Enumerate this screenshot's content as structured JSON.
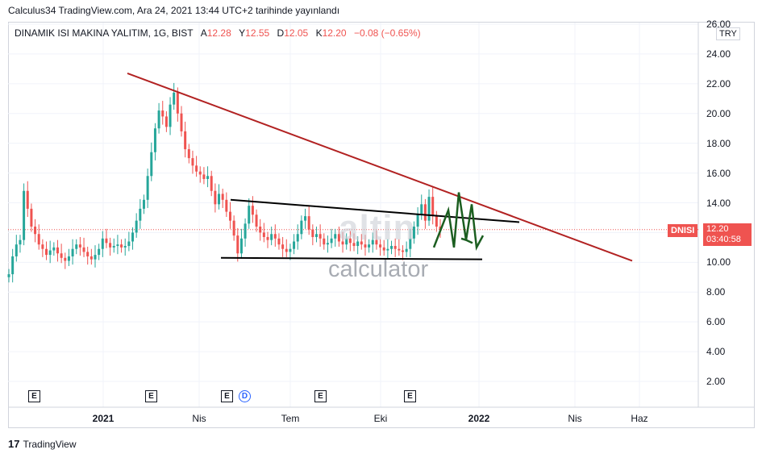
{
  "header": {
    "published": "Calculus34 TradingView.com, Ara 24, 2021 13:44 UTC+2 tarihinde yayınlandı"
  },
  "legend": {
    "symbol": "DINAMIK ISI MAKINA YALITIM, 1G, BIST",
    "open_label": "A",
    "open": "12.28",
    "high_label": "Y",
    "high": "12.55",
    "low_label": "D",
    "low": "12.05",
    "close_label": "K",
    "close": "12.20",
    "change": "−0.08 (−0.65%)"
  },
  "currency": "TRY",
  "price_tag": {
    "ticker": "DNISI",
    "price": "12.20",
    "countdown": "03:40:58"
  },
  "watermark": {
    "brand": "altin",
    "sub": "calculator"
  },
  "footer": {
    "brand": "TradingView"
  },
  "events": [
    "E",
    "E",
    "E",
    "D",
    "E",
    "E"
  ],
  "colors": {
    "up": "#26a69a",
    "down": "#ef5350",
    "trend": "#b22222",
    "triangle": "#000000",
    "pattern": "#1b5e20"
  },
  "chart_data": {
    "type": "candlestick",
    "y_ticks": [
      "26.00",
      "24.00",
      "22.00",
      "20.00",
      "18.00",
      "16.00",
      "14.00",
      "12.00",
      "10.00",
      "8.00",
      "6.00",
      "4.00",
      "2.00"
    ],
    "x_ticks": [
      "2021",
      "Nis",
      "Tem",
      "Eki",
      "2022",
      "Nis",
      "Haz"
    ],
    "ylim": [
      0.9,
      26.5
    ],
    "last_price": 12.2,
    "series": [
      {
        "values": [
          9.2,
          10.4,
          11.2,
          11.5,
          14.8,
          13.6,
          12.4,
          11.9,
          11.2,
          10.9,
          10.5,
          10.8,
          11.0,
          10.6,
          10.3,
          10.1,
          10.4,
          10.9,
          11.2,
          11.0,
          10.7,
          10.4,
          10.2,
          10.5,
          10.9,
          11.6,
          11.3,
          11.0,
          11.1,
          11.2,
          11.0,
          11.1,
          11.4,
          12.0,
          12.8,
          13.6,
          14.2,
          15.8,
          17.4,
          19.0,
          20.2,
          19.8,
          19.1,
          20.6,
          21.4,
          20.0,
          18.8,
          17.6,
          17.0,
          16.5,
          16.1,
          15.9,
          15.6,
          15.8,
          14.8,
          13.9,
          14.6,
          14.2,
          13.4,
          12.8,
          11.8,
          10.6,
          11.6,
          12.6,
          13.8,
          13.2,
          12.4,
          12.0,
          11.7,
          11.5,
          11.9,
          11.6,
          11.2,
          10.9,
          10.7,
          10.9,
          11.4,
          11.9,
          12.8,
          13.1,
          12.2,
          11.7,
          11.9,
          11.6,
          11.2,
          11.3,
          11.6,
          11.9,
          11.4,
          11.2,
          11.6,
          11.3,
          11.1,
          11.4,
          11.2,
          11.0,
          11.2,
          11.5,
          11.2,
          11.0,
          10.8,
          10.9,
          11.1,
          10.9,
          10.8,
          10.7,
          10.9,
          11.6,
          12.4,
          13.2,
          13.9,
          12.8,
          14.4,
          13.1,
          12.4,
          12.2
        ]
      }
    ],
    "annotations": {
      "trendline_top": [
        [
          "2020-12-15",
          22.7
        ],
        [
          "2022-06-15",
          10.1
        ]
      ],
      "triangle_upper": [
        [
          "2021-04-15",
          14.2
        ],
        [
          "2022-01-15",
          12.7
        ]
      ],
      "triangle_lower": [
        [
          "2021-04-15",
          10.3
        ],
        [
          "2022-01-01",
          10.2
        ]
      ]
    }
  }
}
